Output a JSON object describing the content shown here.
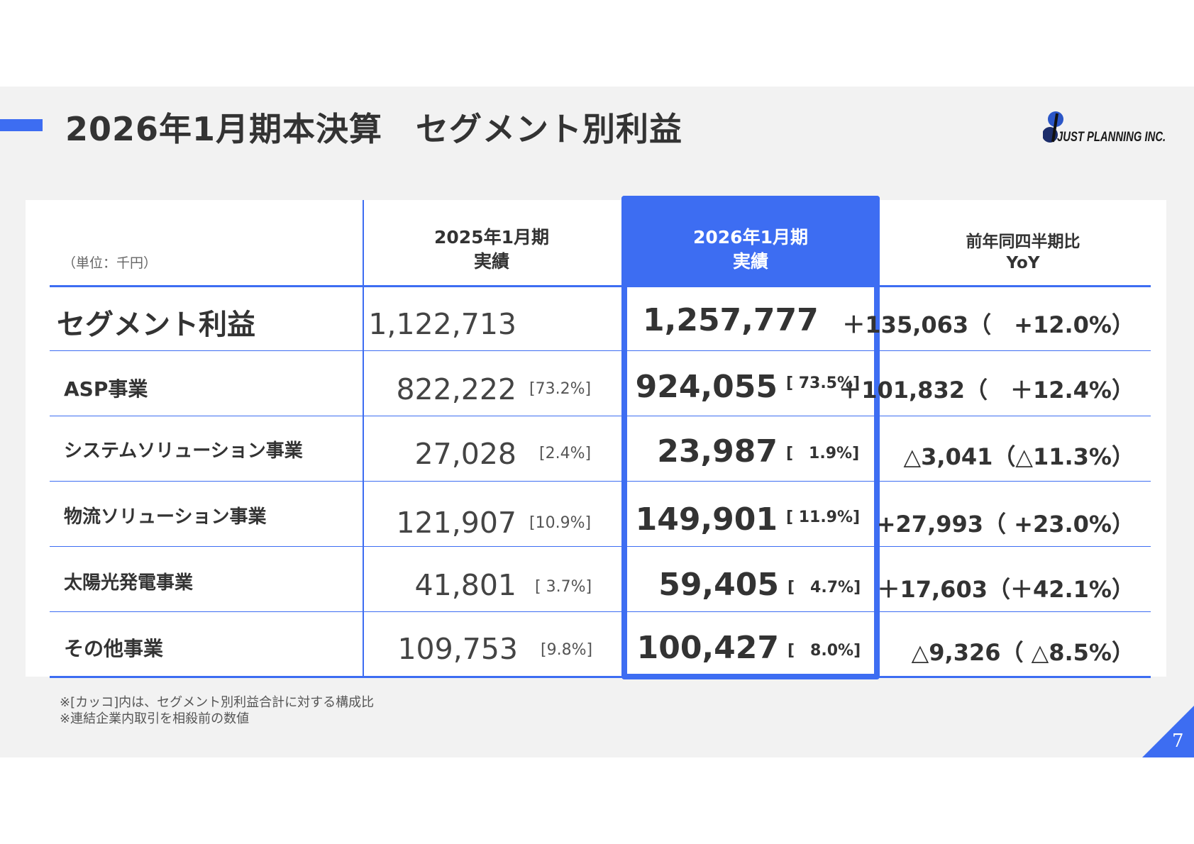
{
  "title": "2026年1月期本決算　セグメント別利益",
  "logo_text": "JUST PLANNING INC.",
  "table": {
    "unit_label": "（単位：千円）",
    "columns": [
      {
        "line1": "2025年1月期",
        "line2": "実績"
      },
      {
        "line1": "2026年1月期",
        "line2": "実績"
      },
      {
        "line1": "前年同四半期比",
        "line2": "YoY"
      }
    ],
    "rows": [
      {
        "label": "セグメント利益",
        "v2025": "1,122,713",
        "p2025": "",
        "v2026": "1,257,777",
        "p2026": "",
        "yoy": "＋135,063（　+12.0%）"
      },
      {
        "label": "ASP事業",
        "v2025": "822,222",
        "p2025": "[73.2%]",
        "v2026": "924,055",
        "p2026": "[ 73.5%]",
        "yoy": "＋101,832（　＋12.4%）"
      },
      {
        "label": "システムソリューション事業",
        "v2025": "27,028",
        "p2025": "[2.4%]",
        "v2026": "23,987",
        "p2026": "[　1.9%]",
        "yoy": "△3,041（△11.3%）"
      },
      {
        "label": "物流ソリューション事業",
        "v2025": "121,907",
        "p2025": "[10.9%]",
        "v2026": "149,901",
        "p2026": "[ 11.9%]",
        "yoy": "+27,993（ +23.0%）"
      },
      {
        "label": "太陽光発電事業",
        "v2025": "41,801",
        "p2025": "[ 3.7%]",
        "v2026": "59,405",
        "p2026": "[　4.7%]",
        "yoy": "＋17,603（＋42.1%）"
      },
      {
        "label": "その他事業",
        "v2025": "109,753",
        "p2025": "[9.8%]",
        "v2026": "100,427",
        "p2026": "[　8.0%]",
        "yoy": "△9,326（ △8.5%）"
      }
    ]
  },
  "notes": [
    "※[カッコ]内は、セグメント別利益合計に対する構成比",
    "※連結企業内取引を相殺前の数値"
  ],
  "page_number": "7",
  "colors": {
    "accent": "#3d6df2",
    "background": "#f2f2f2",
    "text": "#333333"
  }
}
